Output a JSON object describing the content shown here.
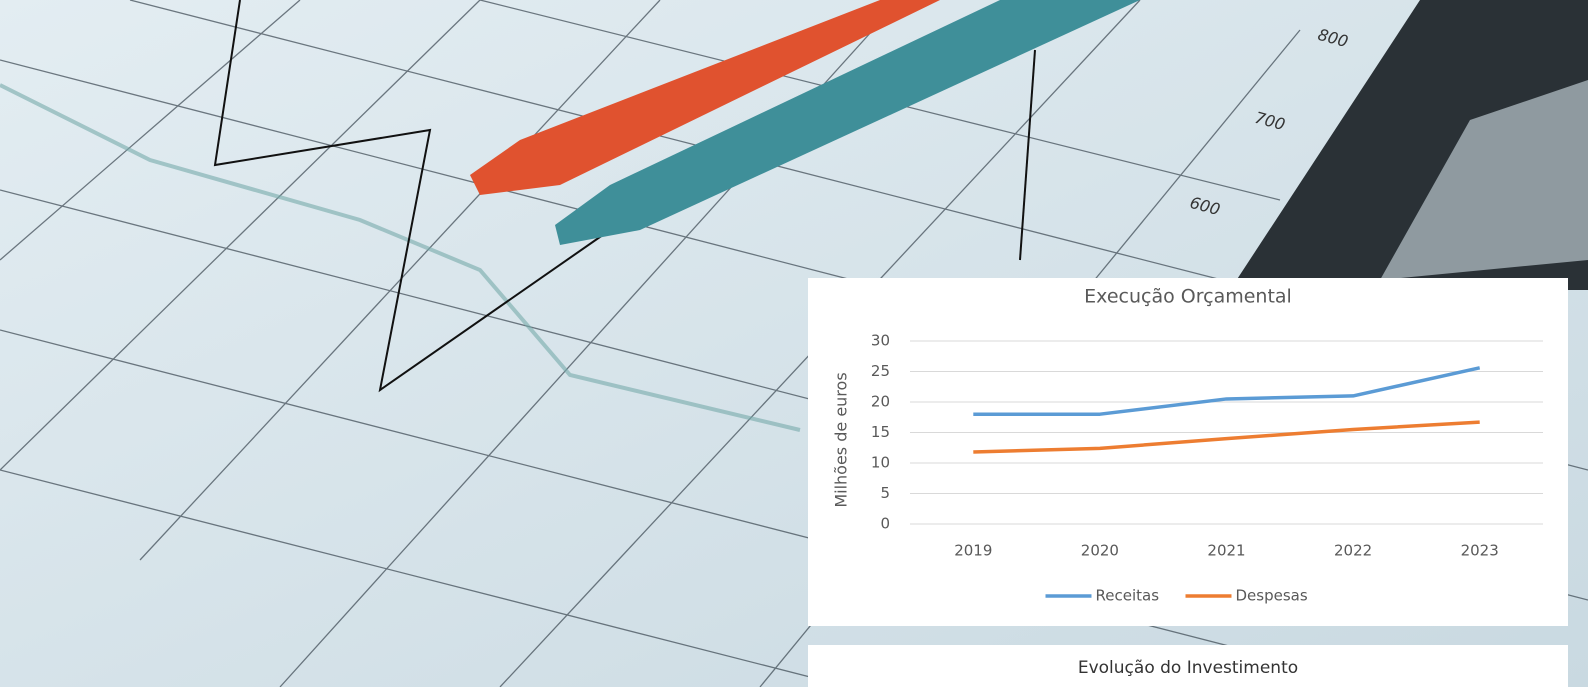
{
  "photo_labels": [
    "800",
    "700",
    "600"
  ],
  "chart_data": {
    "type": "line",
    "title": "Execução Orçamental",
    "y_label": "Milhões de euros",
    "categories": [
      "2019",
      "2020",
      "2021",
      "2022",
      "2023"
    ],
    "series": [
      {
        "name": "Receitas",
        "color": "#5b9bd5",
        "values": [
          18,
          18,
          20.5,
          21,
          25.6
        ]
      },
      {
        "name": "Despesas",
        "color": "#ed7d31",
        "values": [
          11.8,
          12.4,
          14,
          15.5,
          16.7
        ]
      }
    ],
    "ylim": [
      0,
      30
    ],
    "yticks": [
      0,
      5,
      10,
      15,
      20,
      25,
      30
    ],
    "grid": true,
    "legend": "bottom"
  },
  "next_section_title": "Evolução do Investimento"
}
